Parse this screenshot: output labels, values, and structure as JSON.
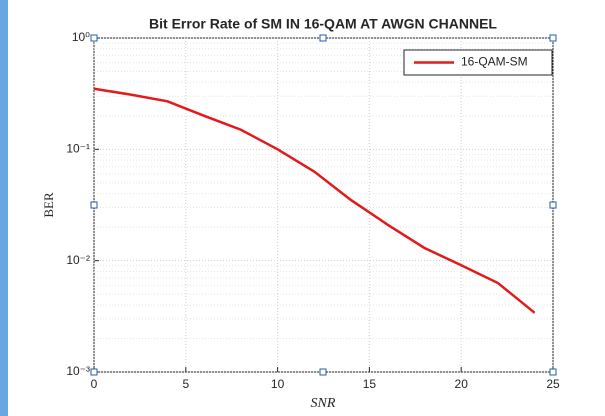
{
  "chart_data": {
    "type": "line",
    "title": "Bit Error Rate of SM IN 16-QAM AT AWGN CHANNEL",
    "x_label": "SNR",
    "y_label": "BER",
    "x": [
      0,
      2,
      4,
      6,
      8,
      10,
      12,
      14,
      16,
      18,
      20,
      22,
      24
    ],
    "series": [
      {
        "name": "16-QAM-SM",
        "color": "#e31a1c",
        "values": [
          0.35,
          0.31,
          0.27,
          0.2,
          0.15,
          0.1,
          0.063,
          0.035,
          0.021,
          0.013,
          0.0091,
          0.0063,
          0.0034
        ]
      }
    ],
    "xlim": [
      0,
      25
    ],
    "xticks": [
      0,
      5,
      10,
      15,
      20,
      25
    ],
    "ylim": [
      0.001,
      1
    ],
    "yticks": [
      {
        "value": 0.001,
        "label": "10⁻³"
      },
      {
        "value": 0.01,
        "label": "10⁻²"
      },
      {
        "value": 0.1,
        "label": "10⁻¹"
      },
      {
        "value": 1,
        "label": "10⁰"
      }
    ],
    "log_y": true,
    "grid": true,
    "legend": "northeast"
  }
}
